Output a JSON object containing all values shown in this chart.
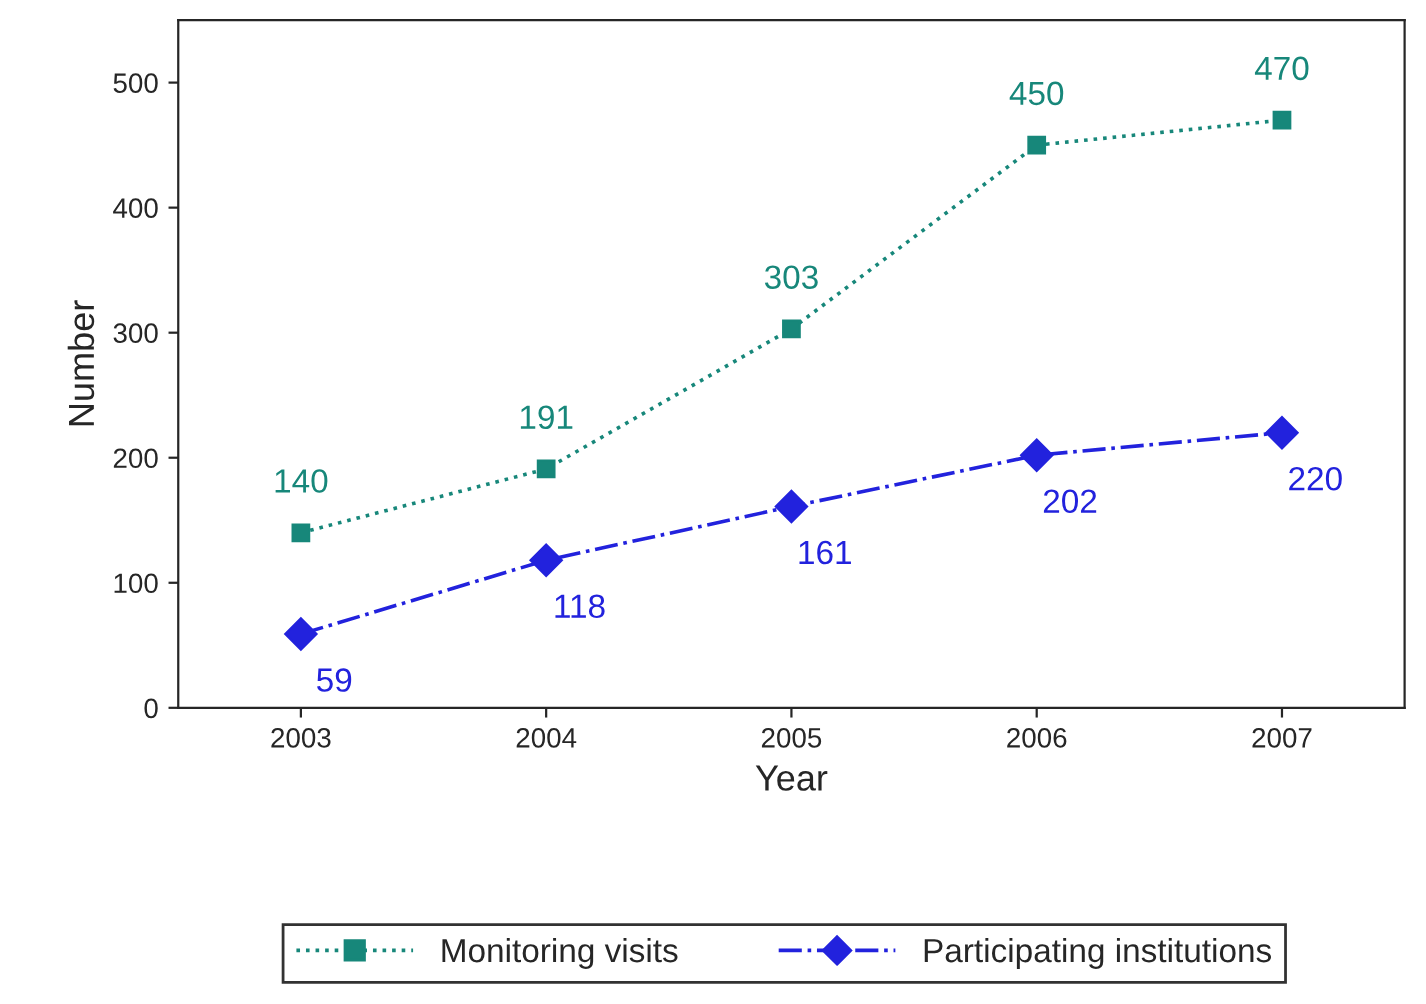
{
  "chart_data": {
    "type": "line",
    "xlabel": "Year",
    "ylabel": "Number",
    "categories": [
      "2003",
      "2004",
      "2005",
      "2006",
      "2007"
    ],
    "series": [
      {
        "name": "Monitoring visits",
        "color": "#17877a",
        "values": [
          140,
          191,
          303,
          450,
          470
        ],
        "marker": "square",
        "line_style": "dotted"
      },
      {
        "name": "Participating institutions",
        "color": "#2222dd",
        "values": [
          59,
          118,
          161,
          202,
          220
        ],
        "marker": "diamond",
        "line_style": "dashed"
      }
    ],
    "ylim": [
      0,
      550
    ],
    "yticks": [
      0,
      100,
      200,
      300,
      400,
      500
    ],
    "data_labels": true,
    "grid": false,
    "legend": "bottom"
  }
}
